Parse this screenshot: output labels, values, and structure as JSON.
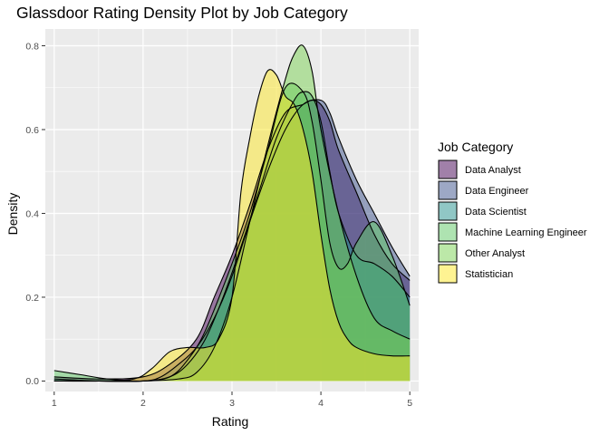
{
  "chart_data": {
    "type": "area",
    "title": "Glassdoor Rating Density Plot by Job Category",
    "xlabel": "Rating",
    "ylabel": "Density",
    "xlim": [
      0.9,
      5.1
    ],
    "ylim": [
      -0.025,
      0.84
    ],
    "x_ticks": [
      1,
      2,
      3,
      4,
      5
    ],
    "y_ticks": [
      0.0,
      0.2,
      0.4,
      0.6,
      0.8
    ],
    "y_tick_labels": [
      "0.0",
      "0.2",
      "0.4",
      "0.6",
      "0.8"
    ],
    "grid": true,
    "background": "#ebebeb",
    "gridline_color": "#ffffff",
    "legend_title": "Job Category",
    "legend_position": "right",
    "fill_opacity": 0.5,
    "series": [
      {
        "name": "Data Analyst",
        "color": "#440154",
        "x": [
          1.0,
          1.5,
          2.0,
          2.3,
          2.6,
          2.8,
          3.0,
          3.2,
          3.4,
          3.6,
          3.8,
          3.9,
          4.0,
          4.1,
          4.2,
          4.4,
          4.6,
          4.8,
          5.0
        ],
        "y": [
          0.01,
          0.005,
          0.01,
          0.04,
          0.1,
          0.2,
          0.3,
          0.42,
          0.55,
          0.64,
          0.66,
          0.67,
          0.66,
          0.62,
          0.55,
          0.45,
          0.35,
          0.28,
          0.24
        ]
      },
      {
        "name": "Data Engineer",
        "color": "#3b528b",
        "x": [
          1.0,
          1.5,
          2.0,
          2.2,
          2.4,
          2.6,
          2.8,
          3.0,
          3.2,
          3.4,
          3.6,
          3.8,
          4.0,
          4.1,
          4.2,
          4.4,
          4.6,
          4.8,
          5.0
        ],
        "y": [
          0.005,
          0.0,
          0.0,
          0.01,
          0.04,
          0.08,
          0.15,
          0.25,
          0.38,
          0.5,
          0.6,
          0.66,
          0.67,
          0.64,
          0.58,
          0.48,
          0.4,
          0.32,
          0.25
        ]
      },
      {
        "name": "Data Scientist",
        "color": "#21908c",
        "x": [
          1.0,
          1.5,
          2.0,
          2.3,
          2.5,
          2.7,
          2.9,
          3.1,
          3.3,
          3.5,
          3.7,
          3.8,
          3.9,
          4.0,
          4.1,
          4.2,
          4.4,
          4.6,
          4.8,
          5.0
        ],
        "y": [
          0.0,
          0.0,
          0.0,
          0.01,
          0.04,
          0.1,
          0.2,
          0.32,
          0.45,
          0.58,
          0.67,
          0.69,
          0.68,
          0.62,
          0.5,
          0.4,
          0.3,
          0.28,
          0.25,
          0.2
        ]
      },
      {
        "name": "Machine Learning Engineer",
        "color": "#5dc863",
        "x": [
          1.0,
          1.3,
          1.6,
          2.0,
          2.3,
          2.5,
          2.7,
          3.0,
          3.2,
          3.4,
          3.6,
          3.8,
          3.9,
          4.0,
          4.1,
          4.2,
          4.3,
          4.4,
          4.6,
          4.8,
          5.0
        ],
        "y": [
          0.025,
          0.015,
          0.005,
          0.0,
          0.01,
          0.05,
          0.12,
          0.28,
          0.4,
          0.55,
          0.7,
          0.69,
          0.62,
          0.48,
          0.33,
          0.27,
          0.28,
          0.33,
          0.38,
          0.3,
          0.18
        ]
      },
      {
        "name": "Other Analyst",
        "color": "#7ad151",
        "x": [
          1.0,
          1.5,
          2.0,
          2.4,
          2.6,
          2.8,
          3.0,
          3.2,
          3.4,
          3.6,
          3.7,
          3.8,
          3.9,
          4.0,
          4.2,
          4.4,
          4.6,
          4.8,
          5.0
        ],
        "y": [
          0.0,
          0.0,
          0.0,
          0.005,
          0.02,
          0.08,
          0.2,
          0.38,
          0.56,
          0.72,
          0.78,
          0.8,
          0.74,
          0.6,
          0.4,
          0.25,
          0.15,
          0.12,
          0.1
        ]
      },
      {
        "name": "Statistician",
        "color": "#fde725",
        "x": [
          1.0,
          1.5,
          1.9,
          2.1,
          2.3,
          2.5,
          2.7,
          2.85,
          3.0,
          3.1,
          3.2,
          3.3,
          3.4,
          3.5,
          3.6,
          3.7,
          3.8,
          3.9,
          4.0,
          4.1,
          4.2,
          4.3,
          4.4,
          4.6,
          4.8,
          5.0
        ],
        "y": [
          0.0,
          0.0,
          0.005,
          0.03,
          0.07,
          0.08,
          0.08,
          0.1,
          0.2,
          0.45,
          0.58,
          0.68,
          0.74,
          0.73,
          0.68,
          0.66,
          0.6,
          0.5,
          0.35,
          0.22,
          0.14,
          0.1,
          0.08,
          0.065,
          0.06,
          0.06
        ]
      }
    ]
  }
}
